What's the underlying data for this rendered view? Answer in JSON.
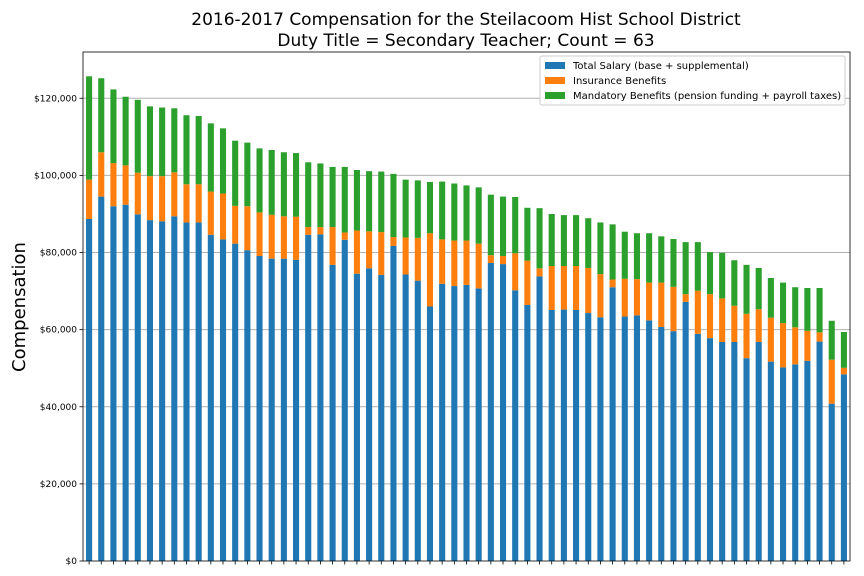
{
  "chart_data": {
    "type": "bar",
    "stacked": true,
    "title_line1": "2016-2017 Compensation for the Steilacoom Hist School District",
    "title_line2": "Duty Title = Secondary Teacher; Count = 63",
    "xlabel": "",
    "ylabel": "Compensation",
    "ylim": [
      0,
      132000
    ],
    "yticks": [
      0,
      20000,
      40000,
      60000,
      80000,
      100000,
      120000
    ],
    "ytick_labels": [
      "$0",
      "$20,000",
      "$40,000",
      "$60,000",
      "$80,000",
      "$100,000",
      "$120,000"
    ],
    "grid": "horizontal",
    "legend_position": "top-right",
    "series": [
      {
        "name": "Total Salary (base + supplemental)",
        "color": "#1f77b4",
        "values": [
          88700,
          94500,
          92000,
          92400,
          89900,
          88400,
          88100,
          89400,
          87800,
          87800,
          84600,
          83400,
          82300,
          80600,
          79100,
          78400,
          78400,
          78100,
          84600,
          84700,
          76800,
          83300,
          74500,
          75900,
          74200,
          81700,
          74300,
          72700,
          66000,
          71900,
          71300,
          71600,
          70700,
          77300,
          77000,
          70200,
          66400,
          73800,
          65100,
          65200,
          65100,
          64300,
          63200,
          71000,
          63400,
          63700,
          62400,
          60700,
          59600,
          67200,
          58900,
          57800,
          56800,
          56800,
          52600,
          56800,
          51700,
          50200,
          51000,
          51900,
          56900,
          40800,
          48400
        ]
      },
      {
        "name": "Insurance Benefits",
        "color": "#ff7f0e",
        "values": [
          10200,
          11500,
          11200,
          10200,
          10800,
          11400,
          11700,
          11400,
          9900,
          9900,
          11200,
          11900,
          9800,
          11400,
          11300,
          11400,
          11000,
          11200,
          2000,
          1900,
          9800,
          1900,
          11200,
          9600,
          11100,
          2300,
          9600,
          11100,
          19000,
          11500,
          11800,
          11500,
          11600,
          2000,
          2100,
          9600,
          11500,
          2100,
          11400,
          11300,
          11400,
          11700,
          11200,
          2000,
          9800,
          9400,
          9800,
          11500,
          11500,
          2000,
          11200,
          11400,
          11300,
          9400,
          11500,
          8500,
          11400,
          11500,
          9600,
          7800,
          2400,
          11400,
          1700
        ]
      },
      {
        "name": "Mandatory Benefits (pension funding + payroll taxes)",
        "color": "#2ca02c",
        "values": [
          26800,
          19200,
          19100,
          17800,
          18900,
          18100,
          17800,
          16600,
          17900,
          17700,
          17700,
          16900,
          16900,
          16500,
          16600,
          16800,
          16600,
          16500,
          16800,
          16500,
          15600,
          17000,
          15700,
          15600,
          15700,
          16400,
          15000,
          14900,
          13300,
          15000,
          14800,
          14300,
          14600,
          15700,
          15400,
          14600,
          13700,
          15600,
          13500,
          13200,
          13200,
          12900,
          13400,
          14300,
          12200,
          11900,
          12800,
          12000,
          12400,
          13500,
          12600,
          10900,
          11800,
          11800,
          12700,
          10700,
          10300,
          10500,
          10400,
          11100,
          11500,
          10100,
          9300
        ]
      }
    ]
  }
}
